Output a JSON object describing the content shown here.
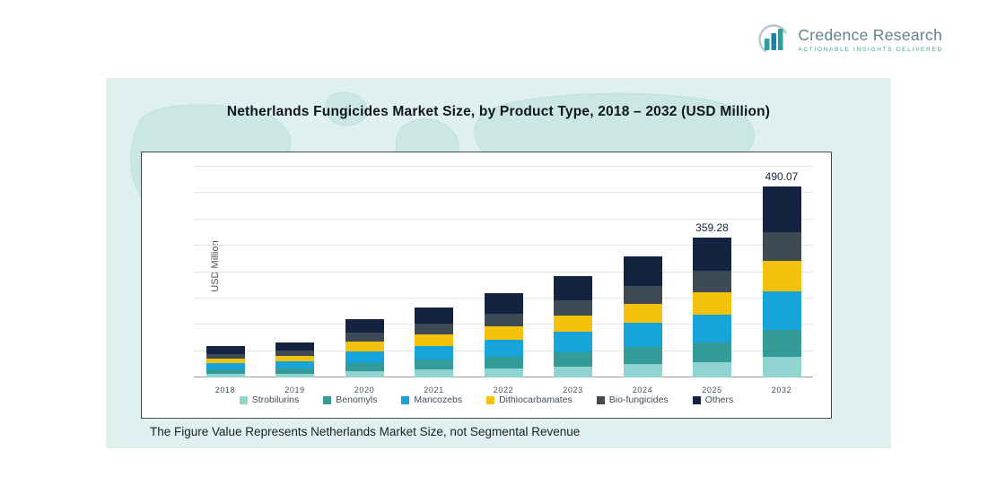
{
  "logo": {
    "name": "Credence Research",
    "tagline": "Actionable Insights Delivered"
  },
  "chart_data": {
    "type": "bar",
    "stacked": true,
    "title": "Netherlands Fungicides Market Size, by Product Type, 2018 – 2032 (USD Million)",
    "ylabel": "USD Million",
    "xlabel": "",
    "categories": [
      "2018",
      "2019",
      "2020",
      "2021",
      "2022",
      "2023",
      "2024",
      "2025",
      "2032"
    ],
    "series": [
      {
        "name": "Strobilurins",
        "color": "#8FD4D0",
        "values": [
          8.8,
          9.9,
          16.5,
          19.8,
          23.7,
          28.6,
          34.1,
          39.5,
          53.9
        ]
      },
      {
        "name": "Benomyls",
        "color": "#339C98",
        "values": [
          11.2,
          12.6,
          21.0,
          25.2,
          30.1,
          36.4,
          43.4,
          50.3,
          68.6
        ]
      },
      {
        "name": "Mancozebs",
        "color": "#17A4DB",
        "values": [
          16.0,
          18.0,
          30.0,
          36.0,
          43.0,
          52.0,
          62.0,
          71.9,
          98.0
        ]
      },
      {
        "name": "Dithiocarbamates",
        "color": "#F4C20D",
        "values": [
          12.8,
          14.4,
          24.0,
          28.8,
          34.4,
          41.6,
          49.6,
          57.5,
          78.4
        ]
      },
      {
        "name": "Bio-fungicides",
        "color": "#3E4A54",
        "values": [
          12.0,
          13.5,
          22.5,
          27.0,
          32.3,
          39.0,
          46.5,
          53.9,
          73.5
        ]
      },
      {
        "name": "Others",
        "color": "#142440",
        "values": [
          19.2,
          21.6,
          36.0,
          43.2,
          51.6,
          62.4,
          74.4,
          86.2,
          117.7
        ]
      }
    ],
    "totals": [
      80,
      90,
      150,
      180,
      215,
      260,
      310,
      359.28,
      490.07
    ],
    "data_labels": {
      "2025": "359.28",
      "2032": "490.07"
    },
    "ylim": [
      0,
      540
    ],
    "grid": true,
    "legend_position": "bottom"
  },
  "footer_note": "The Figure Value Represents Netherlands Market Size, not Segmental Revenue"
}
